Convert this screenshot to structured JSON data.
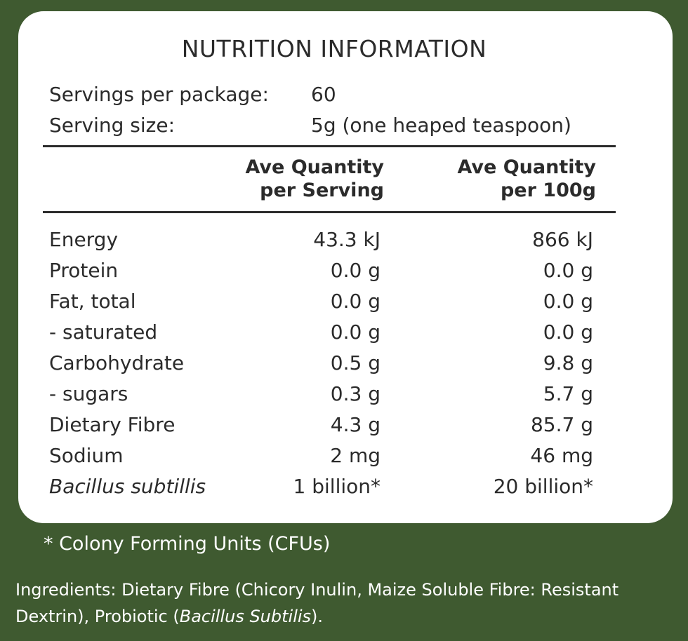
{
  "title": "NUTRITION INFORMATION",
  "meta": {
    "servings_label": "Servings per package:",
    "servings_value": "60",
    "size_label": "Serving size:",
    "size_value": "5g (one heaped teaspoon)"
  },
  "columns": {
    "serving_line1": "Ave Quantity",
    "serving_line2": "per Serving",
    "per100_line1": "Ave Quantity",
    "per100_line2": "per 100g"
  },
  "rows": [
    {
      "name": "Energy",
      "per_serving": "43.3 kJ",
      "per_100g": "866 kJ"
    },
    {
      "name": "Protein",
      "per_serving": "0.0 g",
      "per_100g": "0.0 g"
    },
    {
      "name": "Fat, total",
      "per_serving": "0.0 g",
      "per_100g": "0.0 g"
    },
    {
      "name": "- saturated",
      "per_serving": "0.0 g",
      "per_100g": "0.0 g"
    },
    {
      "name": "Carbohydrate",
      "per_serving": "0.5 g",
      "per_100g": "9.8 g"
    },
    {
      "name": "- sugars",
      "per_serving": "0.3 g",
      "per_100g": "5.7 g"
    },
    {
      "name": "Dietary Fibre",
      "per_serving": "4.3 g",
      "per_100g": "85.7 g"
    },
    {
      "name": "Sodium",
      "per_serving": "2 mg",
      "per_100g": "46 mg"
    },
    {
      "name": "Bacillus subtillis",
      "per_serving": "1 billion*",
      "per_100g": "20 billion*"
    }
  ],
  "footnote": "* Colony Forming Units (CFUs)",
  "ingredients": {
    "prefix": "Ingredients: Dietary Fibre (Chicory Inulin, Maize Soluble Fibre: Resistant Dextrin), Probiotic (",
    "italic": "Bacillus Subtilis",
    "suffix": ")."
  },
  "colors": {
    "background": "#3f5a30",
    "panel": "#ffffff",
    "text": "#2b2b2b"
  }
}
